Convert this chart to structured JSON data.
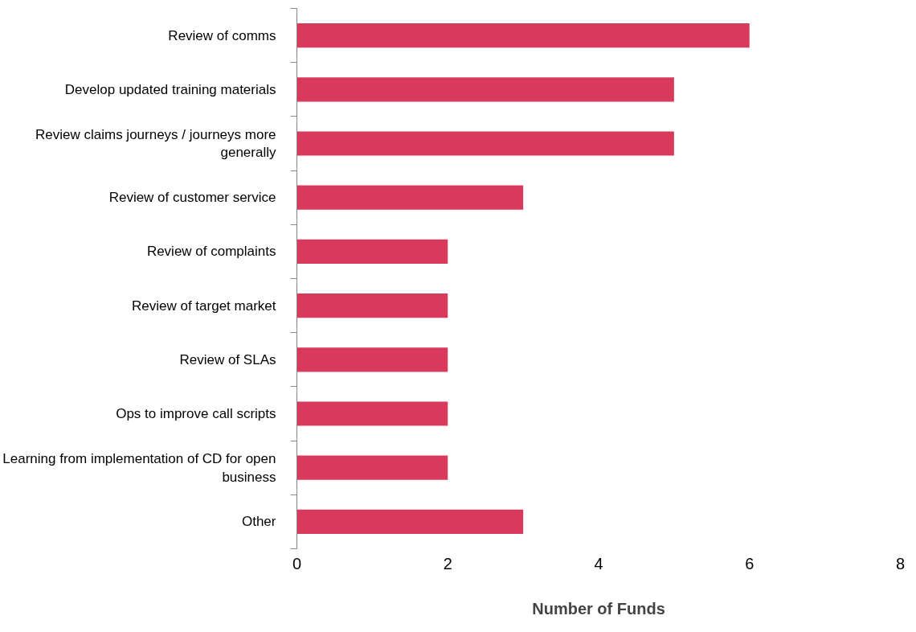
{
  "chart_data": {
    "type": "bar",
    "orientation": "horizontal",
    "xlabel": "Number of Funds",
    "categories": [
      "Review of comms",
      "Develop updated training materials",
      "Review claims journeys / journeys more generally",
      "Review of customer service",
      "Review of complaints",
      "Review of target market",
      "Review of SLAs",
      "Ops to improve call scripts",
      "Learning from implementation of CD for open business",
      "Other"
    ],
    "values": [
      6,
      5,
      5,
      3,
      2,
      2,
      2,
      2,
      2,
      3
    ],
    "color": "#d9395a",
    "xlim": [
      0,
      8
    ],
    "xticks": [
      0,
      2,
      4,
      6,
      8
    ],
    "grid": false
  }
}
